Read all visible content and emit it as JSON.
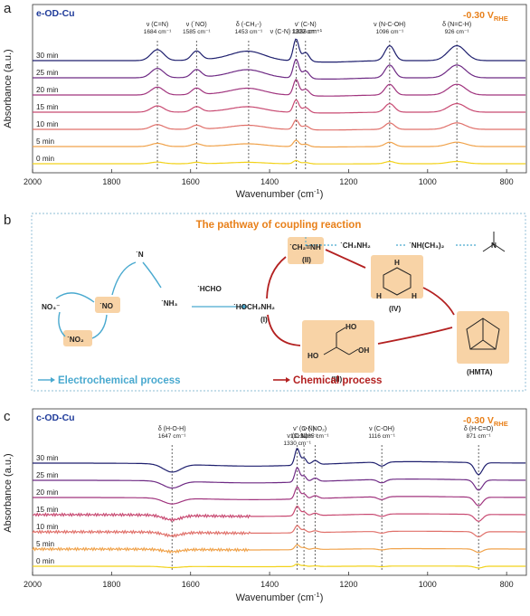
{
  "charts": [
    {
      "panel": "a",
      "sample": "e-OD-Cu",
      "potential": "-0.30 V",
      "potential_sub": "RHE",
      "xlabel": "Wavenumber (cm",
      "xlabel_sup": "-1",
      "xlabel_end": ")",
      "ylabel": "Absorbance (a.u.)",
      "xticks": [
        "2000",
        "1800",
        "1600",
        "1400",
        "1200",
        "1000",
        "800"
      ],
      "times": [
        "0 min",
        "5 min",
        "10 min",
        "15 min",
        "20 min",
        "25 min",
        "30 min"
      ],
      "bands": [
        {
          "line1": "ν (C=N)",
          "line2": "1684 cm⁻¹",
          "wn": 1684
        },
        {
          "line1": "ν (˙NO)",
          "line2": "1585 cm⁻¹",
          "wn": 1585
        },
        {
          "line1": "δ (-CH₂-)",
          "line2": "1453 cm⁻¹",
          "wn": 1453
        },
        {
          "line1": "ν (C-N) 1333 cm⁻¹",
          "line2": "",
          "wn": 1333
        },
        {
          "line1": "ν' (C-N)",
          "line2": "1309 cm⁻¹",
          "wn": 1309
        },
        {
          "line1": "ν (N-C-OH)",
          "line2": "1096 cm⁻¹",
          "wn": 1096
        },
        {
          "line1": "δ (N=C-H)",
          "line2": "926 cm⁻¹",
          "wn": 926
        }
      ]
    },
    {
      "panel": "c",
      "sample": "c-OD-Cu",
      "potential": "-0.30 V",
      "potential_sub": "RHE",
      "xlabel": "Wavenumber (cm",
      "xlabel_sup": "-1",
      "xlabel_end": ")",
      "ylabel": "Absorbance (a.u.)",
      "xticks": [
        "2000",
        "1800",
        "1600",
        "1400",
        "1200",
        "1000",
        "800"
      ],
      "times": [
        "0 min",
        "5 min",
        "10 min",
        "15 min",
        "20 min",
        "25 min",
        "30 min"
      ],
      "bands": [
        {
          "line1": "δ (H-O-H)",
          "line2": "1647 cm⁻¹",
          "wn": 1647
        },
        {
          "line1": "ν (C-N)",
          "line2": "1330 cm⁻¹",
          "wn": 1330
        },
        {
          "line1": "ν' (C-N)",
          "line2": "1313 cm⁻¹",
          "wn": 1313
        },
        {
          "line1": "ν (˙NO₂)",
          "line2": "1285 cm⁻¹",
          "wn": 1285
        },
        {
          "line1": "ν (C-OH)",
          "line2": "1116 cm⁻¹",
          "wn": 1116
        },
        {
          "line1": "δ (H-C=O)",
          "line2": "871 cm⁻¹",
          "wn": 871
        }
      ]
    }
  ],
  "chart_data": [
    {
      "type": "line",
      "title": "e-OD-Cu",
      "x_range": [
        2000,
        750
      ],
      "xlabel": "Wavenumber (cm-1)",
      "ylabel": "Absorbance (a.u.)",
      "series": [
        {
          "name": "0 min",
          "color": "#f2d21a"
        },
        {
          "name": "5 min",
          "color": "#f0a24a"
        },
        {
          "name": "10 min",
          "color": "#e0706a"
        },
        {
          "name": "15 min",
          "color": "#c84a72"
        },
        {
          "name": "20 min",
          "color": "#a0347e"
        },
        {
          "name": "25 min",
          "color": "#6e2a84"
        },
        {
          "name": "30 min",
          "color": "#1e1f6e"
        }
      ],
      "peaks_cm-1": [
        1684,
        1585,
        1453,
        1333,
        1309,
        1096,
        926
      ]
    },
    {
      "type": "line",
      "title": "c-OD-Cu",
      "x_range": [
        2000,
        750
      ],
      "xlabel": "Wavenumber (cm-1)",
      "ylabel": "Absorbance (a.u.)",
      "series": [
        {
          "name": "0 min",
          "color": "#f2d21a"
        },
        {
          "name": "5 min",
          "color": "#f0a24a"
        },
        {
          "name": "10 min",
          "color": "#e0706a"
        },
        {
          "name": "15 min",
          "color": "#c84a72"
        },
        {
          "name": "20 min",
          "color": "#a0347e"
        },
        {
          "name": "25 min",
          "color": "#6e2a84"
        },
        {
          "name": "30 min",
          "color": "#1e1f6e"
        }
      ],
      "peaks_cm-1": [
        1647,
        1330,
        1313,
        1285,
        1116,
        871
      ]
    }
  ],
  "pathway": {
    "panel": "b",
    "title": "The pathway of coupling reaction",
    "species": {
      "no3": "NO₃⁻",
      "no2": "˙NO₂",
      "no": "˙NO",
      "n": "˙N",
      "nh3": "˙NH₃",
      "hcho": "˙HCHO",
      "hoch2nh2": "˙HOCH₂NH₂",
      "ch2nh": "˙CH₂=NH",
      "ch3nh2": "˙CH₃NH₂",
      "nhch32": "˙NH(CH₃)₂",
      "I": "(I)",
      "II": "(II)",
      "III": "(III)",
      "IV": "(IV)",
      "hmta": "(HMTA)",
      "ho": "HO",
      "oh": "OH",
      "h": "H",
      "nl": "N"
    },
    "legend": {
      "electrochemical": "Electrochemical process",
      "chemical": "Chemical process"
    },
    "colors": {
      "electrochemical": "#49a9cf",
      "chemical": "#b32020",
      "highlight": "#f8d3a6",
      "title": "#e8801a"
    }
  }
}
